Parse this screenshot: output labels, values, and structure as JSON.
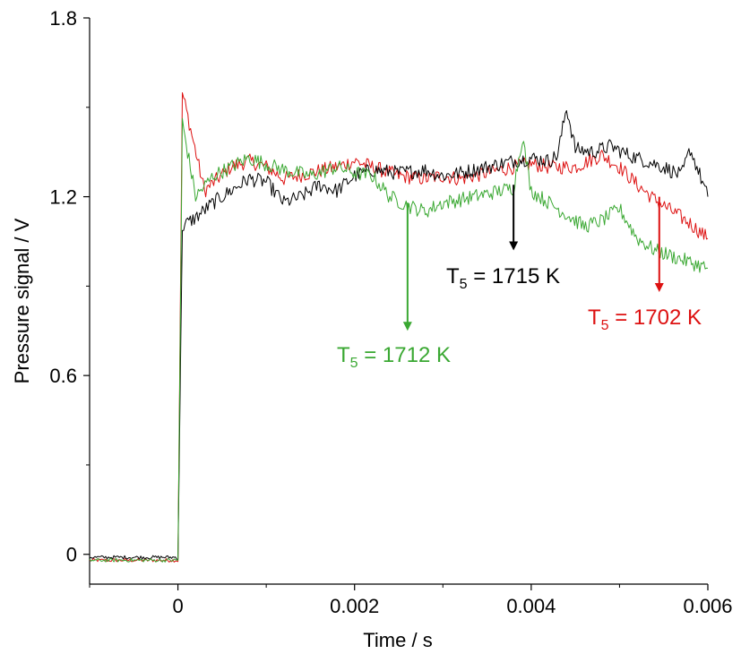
{
  "chart_data": {
    "type": "line",
    "xlabel": "Time / s",
    "ylabel": "Pressure signal / V",
    "xlim": [
      -0.001,
      0.006
    ],
    "ylim": [
      -0.1,
      1.8
    ],
    "xticks": [
      0,
      0.002,
      0.004,
      0.006
    ],
    "xtick_labels": [
      "0",
      "0.002",
      "0.004",
      "0.006"
    ],
    "yticks": [
      0,
      0.6,
      1.2,
      1.8
    ],
    "ytick_labels": [
      "0",
      "0.6",
      "1.2",
      "1.8"
    ],
    "grid": false,
    "series": [
      {
        "color": "#dd1111",
        "x": [
          -0.001,
          -0.0001,
          0,
          5e-05,
          0.0003,
          0.0006,
          0.0008,
          0.001,
          0.0012,
          0.0015,
          0.0018,
          0.002,
          0.0022,
          0.0025,
          0.0028,
          0.003,
          0.0032,
          0.0035,
          0.0038,
          0.004,
          0.0042,
          0.0045,
          0.0048,
          0.005,
          0.0052,
          0.0054,
          0.0056,
          0.0058,
          0.006
        ],
        "y": [
          -0.02,
          -0.02,
          -0.02,
          1.55,
          1.22,
          1.3,
          1.32,
          1.3,
          1.26,
          1.28,
          1.3,
          1.32,
          1.3,
          1.27,
          1.26,
          1.27,
          1.26,
          1.28,
          1.3,
          1.31,
          1.3,
          1.3,
          1.34,
          1.3,
          1.24,
          1.19,
          1.15,
          1.11,
          1.06
        ]
      },
      {
        "color": "#000000",
        "x": [
          -0.001,
          -0.0001,
          0,
          5e-05,
          0.0002,
          0.0004,
          0.0006,
          0.0008,
          0.001,
          0.0012,
          0.0014,
          0.0016,
          0.0018,
          0.002,
          0.0022,
          0.0025,
          0.0028,
          0.003,
          0.0032,
          0.0035,
          0.0038,
          0.004,
          0.0042,
          0.0043,
          0.0044,
          0.0045,
          0.0047,
          0.0049,
          0.0051,
          0.0053,
          0.0055,
          0.0057,
          0.0058,
          0.006
        ],
        "y": [
          -0.01,
          -0.01,
          -0.01,
          1.1,
          1.13,
          1.18,
          1.22,
          1.26,
          1.25,
          1.18,
          1.2,
          1.24,
          1.22,
          1.27,
          1.29,
          1.28,
          1.29,
          1.27,
          1.28,
          1.3,
          1.32,
          1.33,
          1.32,
          1.34,
          1.5,
          1.36,
          1.35,
          1.37,
          1.34,
          1.32,
          1.3,
          1.27,
          1.36,
          1.2
        ]
      },
      {
        "color": "#3aa832",
        "x": [
          -0.001,
          -0.0001,
          0,
          5e-05,
          0.0002,
          0.0004,
          0.0006,
          0.0008,
          0.001,
          0.0012,
          0.0015,
          0.0018,
          0.002,
          0.0022,
          0.0024,
          0.0026,
          0.0028,
          0.003,
          0.0032,
          0.0035,
          0.0038,
          0.0039,
          0.004,
          0.0042,
          0.0044,
          0.0046,
          0.0048,
          0.005,
          0.0052,
          0.0054,
          0.0056,
          0.0058,
          0.006
        ],
        "y": [
          -0.02,
          -0.02,
          -0.02,
          1.45,
          1.2,
          1.27,
          1.3,
          1.33,
          1.31,
          1.29,
          1.27,
          1.3,
          1.28,
          1.27,
          1.2,
          1.17,
          1.15,
          1.18,
          1.19,
          1.21,
          1.23,
          1.4,
          1.22,
          1.18,
          1.14,
          1.1,
          1.12,
          1.16,
          1.06,
          1.02,
          1.0,
          0.98,
          0.96
        ]
      }
    ],
    "annotations": [
      {
        "prefix": "T",
        "sub": "5",
        "suffix": " = 1715 K",
        "color": "#000000",
        "arrow_x": 0.0038,
        "arrow_y_from": 1.24,
        "arrow_y_to": 1.02
      },
      {
        "prefix": "T",
        "sub": "5",
        "suffix": " = 1702 K",
        "color": "#dd1111",
        "arrow_x": 0.00545,
        "arrow_y_from": 1.2,
        "arrow_y_to": 0.88
      },
      {
        "prefix": "T",
        "sub": "5",
        "suffix": " = 1712 K",
        "color": "#3aa832",
        "arrow_x": 0.0026,
        "arrow_y_from": 1.18,
        "arrow_y_to": 0.75
      }
    ]
  }
}
